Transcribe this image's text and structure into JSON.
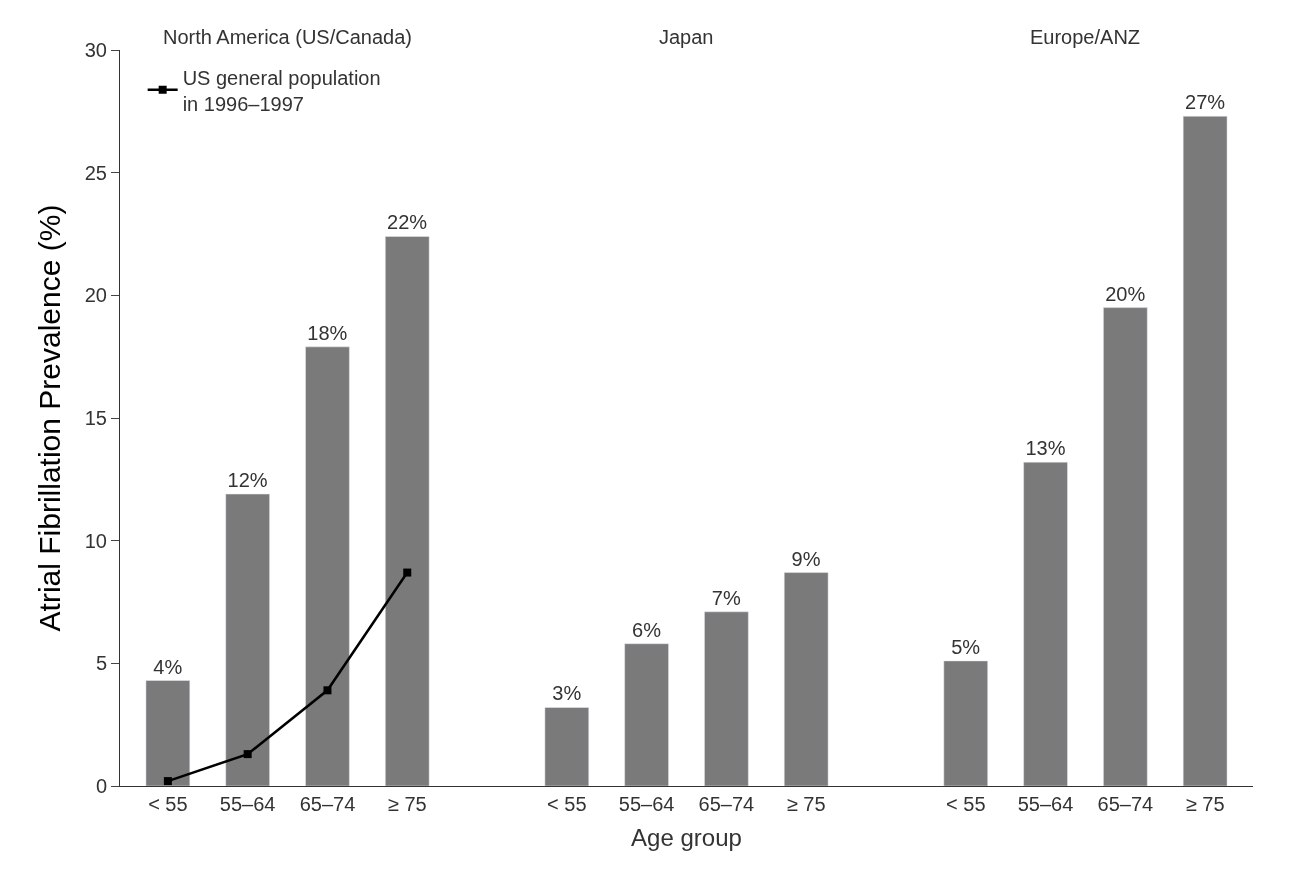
{
  "chart_data": {
    "type": "bar",
    "xlabel": "Age group",
    "ylabel": "Atrial Fibrillation Prevalence (%)",
    "categories": [
      "< 55",
      "55–64",
      "65–74",
      "≥ 75",
      null,
      "< 55",
      "55–64",
      "65–74",
      "≥ 75",
      null,
      "< 55",
      "55–64",
      "65–74",
      "≥ 75"
    ],
    "annotations": [
      "North America (US/Canada)",
      "Japan",
      "Europe/ANZ"
    ],
    "series": [
      {
        "color": "#7a7a7a",
        "values": [
          4.3,
          11.9,
          17.9,
          22.4,
          null,
          3.2,
          5.8,
          7.1,
          8.7,
          null,
          5.1,
          13.2,
          19.5,
          27.3
        ],
        "value_labels": [
          "4%",
          "12%",
          "18%",
          "22%",
          null,
          "3%",
          "6%",
          "7%",
          "9%",
          null,
          "5%",
          "13%",
          "20%",
          "27%"
        ]
      },
      {
        "type": "line",
        "name": "US general population in 1996–1997",
        "color": "#000000",
        "values": [
          0.2,
          1.3,
          3.9,
          8.7,
          null,
          null,
          null,
          null,
          null,
          null,
          null,
          null,
          null,
          null
        ]
      }
    ],
    "ylim": [
      0,
      30
    ],
    "yticks": [
      0,
      5,
      10,
      15,
      20,
      25,
      30
    ],
    "grid": false,
    "legend": "top left",
    "marker": "square",
    "line_style": "solid"
  }
}
